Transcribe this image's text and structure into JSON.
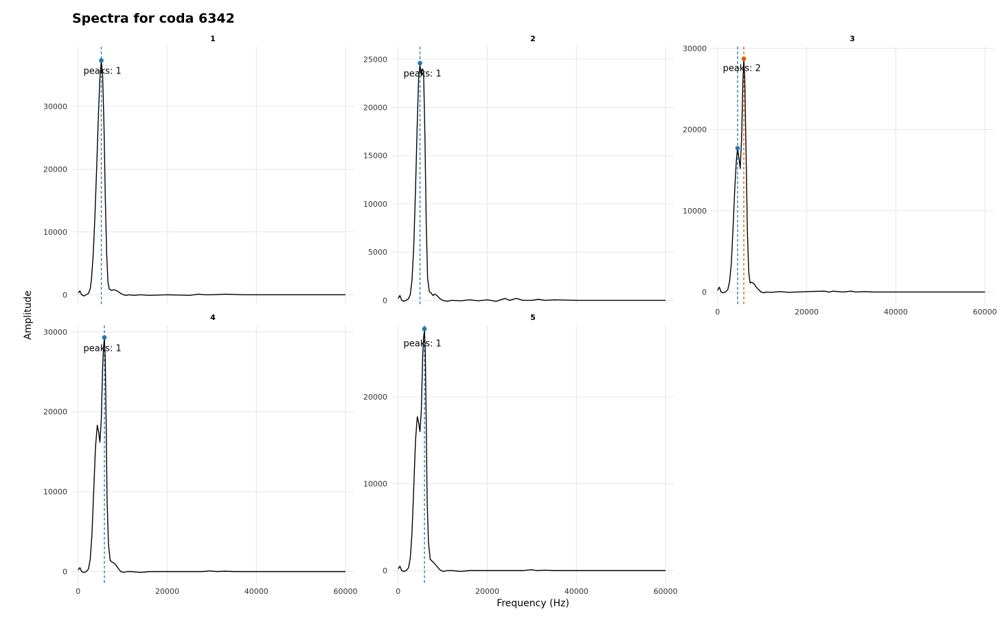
{
  "chart_data": {
    "type": "line",
    "title": "Spectra for coda 6342",
    "xlabel": "Frequency (Hz)",
    "ylabel": "Amplitude",
    "facet_layout": "3 columns x 2 rows",
    "grid": true,
    "line_color": "#000000",
    "peak_colors": [
      "#1f77b4",
      "#d95f02"
    ],
    "x_ticks": [
      0,
      20000,
      40000,
      60000
    ],
    "x_tick_labels": [
      "0",
      "20000",
      "40000",
      "60000"
    ],
    "panels": [
      {
        "strip": "1",
        "xlim": [
          -1500,
          62000
        ],
        "ylim": [
          -1500,
          39500
        ],
        "y_ticks": [
          0,
          10000,
          20000,
          30000
        ],
        "y_tick_labels": [
          "0",
          "10000",
          "20000",
          "30000"
        ],
        "show_x_ticks": false,
        "annotation": "peaks: 1",
        "annotation_pos": [
          1200,
          35200
        ],
        "peaks": [
          {
            "x": 5200,
            "y": 37300,
            "color": "#1f77b4"
          }
        ],
        "x": [
          0,
          400,
          800,
          1300,
          1800,
          2300,
          2700,
          3000,
          3400,
          3800,
          4200,
          4600,
          4900,
          5200,
          5500,
          5800,
          6100,
          6400,
          6700,
          7000,
          7500,
          8000,
          8500,
          9000,
          9600,
          10200,
          10800,
          11500,
          12500,
          14000,
          16000,
          20000,
          25000,
          27000,
          28500,
          30000,
          33000,
          35000,
          37000,
          40000,
          45000,
          50000,
          55000,
          60000
        ],
        "y": [
          300,
          600,
          0,
          -200,
          0,
          200,
          900,
          2500,
          6500,
          13000,
          21000,
          29500,
          34500,
          37200,
          35000,
          27000,
          15500,
          6500,
          2000,
          900,
          700,
          800,
          700,
          500,
          200,
          0,
          -100,
          0,
          -100,
          0,
          -100,
          0,
          -100,
          100,
          0,
          0,
          100,
          50,
          0,
          0,
          0,
          0,
          0,
          0
        ]
      },
      {
        "strip": "2",
        "xlim": [
          -1500,
          62000
        ],
        "ylim": [
          -400,
          26300
        ],
        "y_ticks": [
          0,
          5000,
          10000,
          15000,
          20000,
          25000
        ],
        "y_tick_labels": [
          "0",
          "5000",
          "10000",
          "15000",
          "20000",
          "25000"
        ],
        "show_x_ticks": false,
        "annotation": "peaks: 1",
        "annotation_pos": [
          1200,
          23200
        ],
        "peaks": [
          {
            "x": 4900,
            "y": 24600,
            "color": "#1f77b4"
          }
        ],
        "x": [
          0,
          400,
          800,
          1300,
          1800,
          2300,
          2700,
          3100,
          3500,
          3900,
          4300,
          4600,
          4900,
          5200,
          5400,
          5700,
          6000,
          6300,
          6600,
          7000,
          7400,
          7800,
          8200,
          8700,
          9300,
          10000,
          11000,
          12000,
          14000,
          16000,
          18000,
          20000,
          22000,
          23000,
          24000,
          25000,
          26500,
          28000,
          30000,
          31500,
          33000,
          35000,
          40000,
          45000,
          50000,
          55000,
          60000
        ],
        "y": [
          200,
          500,
          0,
          -100,
          0,
          150,
          600,
          2000,
          5500,
          11500,
          18500,
          23200,
          24400,
          23300,
          24000,
          23800,
          17000,
          8000,
          2300,
          900,
          750,
          500,
          650,
          500,
          200,
          0,
          -100,
          0,
          -50,
          50,
          -50,
          50,
          -100,
          50,
          200,
          0,
          200,
          0,
          0,
          100,
          0,
          50,
          0,
          0,
          0,
          0,
          0
        ]
      },
      {
        "strip": "3",
        "xlim": [
          -1500,
          62000
        ],
        "ylim": [
          -1500,
          30200
        ],
        "y_ticks": [
          0,
          10000,
          20000,
          30000
        ],
        "y_tick_labels": [
          "0",
          "10000",
          "20000",
          "30000"
        ],
        "show_x_ticks": true,
        "annotation": "peaks: 2",
        "annotation_pos": [
          1200,
          27200
        ],
        "peaks": [
          {
            "x": 4500,
            "y": 17700,
            "color": "#1f77b4"
          },
          {
            "x": 5900,
            "y": 28700,
            "color": "#d95f02"
          }
        ],
        "x": [
          0,
          400,
          800,
          1300,
          1800,
          2300,
          2700,
          3100,
          3500,
          3900,
          4200,
          4500,
          4800,
          5100,
          5400,
          5700,
          5900,
          6100,
          6400,
          6700,
          7000,
          7300,
          7700,
          8200,
          8700,
          9200,
          9800,
          10400,
          11000,
          12000,
          14000,
          16000,
          20000,
          24000,
          25000,
          26000,
          28000,
          30000,
          31000,
          33000,
          35000,
          40000,
          45000,
          50000,
          55000,
          60000
        ],
        "y": [
          200,
          600,
          0,
          -100,
          0,
          300,
          1300,
          3500,
          8000,
          13000,
          16000,
          17700,
          16500,
          15200,
          19000,
          26000,
          28500,
          26500,
          17000,
          7500,
          2500,
          1100,
          1200,
          1000,
          600,
          300,
          0,
          -100,
          0,
          -50,
          50,
          -50,
          50,
          100,
          0,
          100,
          0,
          100,
          0,
          50,
          0,
          0,
          0,
          0,
          0,
          0
        ]
      },
      {
        "strip": "4",
        "xlim": [
          -1500,
          62000
        ],
        "ylim": [
          -1500,
          30800
        ],
        "y_ticks": [
          0,
          10000,
          20000,
          30000
        ],
        "y_tick_labels": [
          "0",
          "10000",
          "20000",
          "30000"
        ],
        "show_x_ticks": true,
        "annotation": "peaks: 1",
        "annotation_pos": [
          1200,
          27600
        ],
        "peaks": [
          {
            "x": 5900,
            "y": 29300,
            "color": "#1f77b4"
          }
        ],
        "x": [
          0,
          400,
          800,
          1300,
          1800,
          2300,
          2700,
          3100,
          3500,
          3900,
          4300,
          4600,
          4900,
          5200,
          5500,
          5700,
          5900,
          6100,
          6300,
          6500,
          6800,
          7200,
          7600,
          8000,
          8500,
          9000,
          9600,
          10200,
          11000,
          12000,
          14000,
          16000,
          20000,
          25000,
          28000,
          29500,
          31000,
          33000,
          35000,
          40000,
          45000,
          50000,
          55000,
          60000
        ],
        "y": [
          200,
          500,
          0,
          -100,
          0,
          300,
          1500,
          4500,
          10000,
          15500,
          18300,
          17500,
          16200,
          19000,
          25500,
          28000,
          29200,
          26500,
          18500,
          9000,
          3500,
          1400,
          1200,
          1100,
          800,
          400,
          0,
          -100,
          0,
          0,
          -100,
          0,
          0,
          0,
          0,
          100,
          0,
          50,
          0,
          0,
          0,
          0,
          0,
          0
        ]
      },
      {
        "strip": "5",
        "xlim": [
          -1500,
          62000
        ],
        "ylim": [
          -1500,
          28200
        ],
        "y_ticks": [
          0,
          10000,
          20000
        ],
        "y_tick_labels": [
          "0",
          "10000",
          "20000"
        ],
        "show_x_ticks": true,
        "annotation": "peaks: 1",
        "annotation_pos": [
          1200,
          25800
        ],
        "peaks": [
          {
            "x": 5900,
            "y": 27800,
            "color": "#1f77b4"
          }
        ],
        "x": [
          0,
          400,
          800,
          1300,
          1800,
          2300,
          2700,
          3100,
          3500,
          3900,
          4300,
          4600,
          4900,
          5200,
          5500,
          5700,
          5900,
          6100,
          6300,
          6500,
          6800,
          7200,
          7600,
          8000,
          8500,
          9000,
          9600,
          10200,
          11000,
          12000,
          14000,
          16000,
          20000,
          25000,
          28000,
          30000,
          31000,
          33000,
          35000,
          40000,
          45000,
          50000,
          55000,
          60000
        ],
        "y": [
          200,
          500,
          0,
          -100,
          0,
          300,
          1400,
          4200,
          9500,
          15000,
          17700,
          17000,
          16000,
          18500,
          24500,
          26800,
          27600,
          25000,
          17000,
          8000,
          3200,
          1300,
          1100,
          900,
          600,
          300,
          0,
          -100,
          0,
          0,
          -100,
          0,
          0,
          0,
          0,
          100,
          0,
          50,
          0,
          0,
          0,
          0,
          0,
          0
        ]
      }
    ]
  }
}
